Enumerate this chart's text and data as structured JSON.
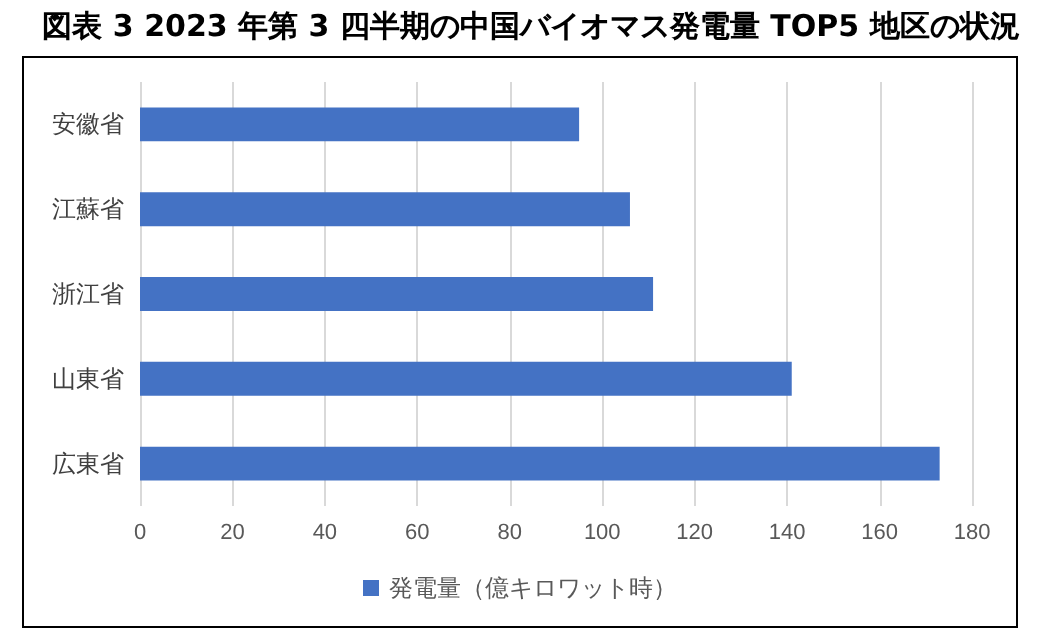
{
  "chart_data": {
    "type": "bar",
    "orientation": "horizontal",
    "title": "図表 3 2023 年第 3 四半期の中国バイオマス発電量 TOP5 地区の状況",
    "categories": [
      "安徽省",
      "江蘇省",
      "浙江省",
      "山東省",
      "広東省"
    ],
    "series": [
      {
        "name": "発電量（億キロワット時）",
        "color": "#4472c4",
        "values": [
          95,
          106,
          111,
          141,
          173
        ]
      }
    ],
    "xlim": [
      0,
      180
    ],
    "xticks": [
      0,
      20,
      40,
      60,
      80,
      100,
      120,
      140,
      160,
      180
    ],
    "grid": "x",
    "legend": "bottom"
  }
}
